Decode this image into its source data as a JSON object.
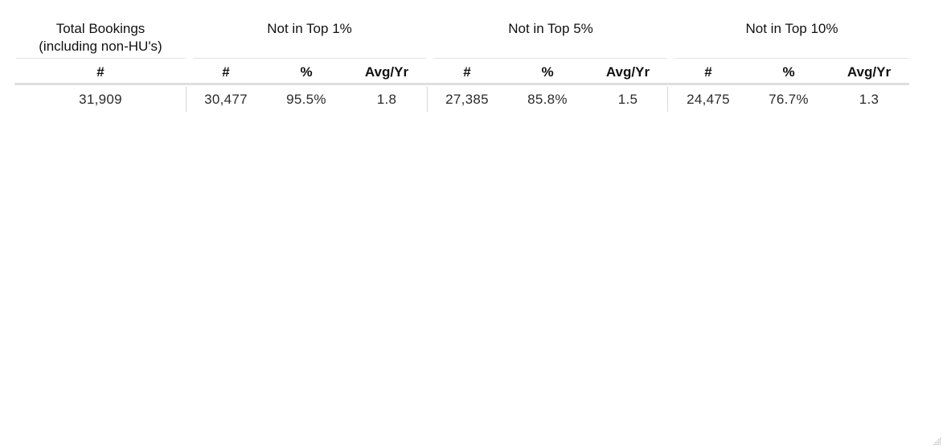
{
  "table": {
    "groups": {
      "total": {
        "line1": "Total Bookings",
        "line2": "(including non-HU's)"
      },
      "top1": "Not in Top 1%",
      "top5": "Not in Top 5%",
      "top10": "Not in Top 10%"
    },
    "columns": {
      "total_count": "#",
      "top1_count": "#",
      "top1_pct": "%",
      "top1_avg": "Avg/Yr",
      "top5_count": "#",
      "top5_pct": "%",
      "top5_avg": "Avg/Yr",
      "top10_count": "#",
      "top10_pct": "%",
      "top10_avg": "Avg/Yr"
    },
    "row": {
      "total_count": "31,909",
      "top1_count": "30,477",
      "top1_pct": "95.5%",
      "top1_avg": "1.8",
      "top5_count": "27,385",
      "top5_pct": "85.8%",
      "top5_avg": "1.5",
      "top10_count": "24,475",
      "top10_pct": "76.7%",
      "top10_avg": "1.3"
    }
  },
  "icons": {
    "corner": "resize-grip-icon"
  }
}
